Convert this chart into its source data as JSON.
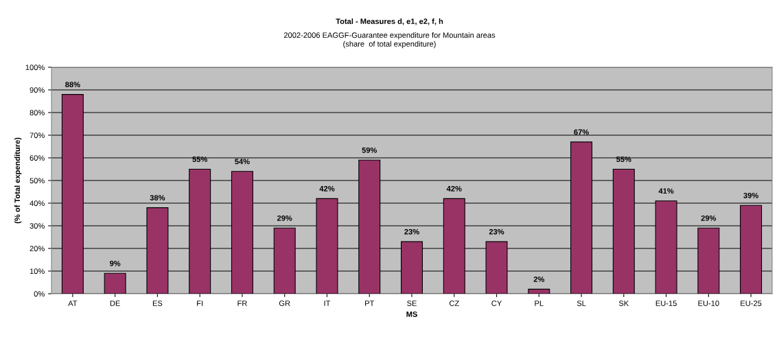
{
  "chart_data": {
    "type": "bar",
    "title": "Total - Measures d, e1, e2, f, h",
    "subtitle": "2002-2006 EAGGF-Guarantee expenditure for Mountain areas\n(share  of total expenditure)",
    "xlabel": "MS",
    "ylabel": "(% of Total expenditure)",
    "categories": [
      "AT",
      "DE",
      "ES",
      "FI",
      "FR",
      "GR",
      "IT",
      "PT",
      "SE",
      "CZ",
      "CY",
      "PL",
      "SL",
      "SK",
      "EU-15",
      "EU-10",
      "EU-25"
    ],
    "values": [
      88,
      9,
      38,
      55,
      54,
      29,
      42,
      59,
      23,
      42,
      23,
      2,
      67,
      55,
      41,
      29,
      39
    ],
    "value_labels": [
      "88%",
      "9%",
      "38%",
      "55%",
      "54%",
      "29%",
      "42%",
      "59%",
      "23%",
      "42%",
      "23%",
      "2%",
      "67%",
      "55%",
      "41%",
      "29%",
      "39%"
    ],
    "color": "#993366",
    "ylim": [
      0,
      100
    ],
    "yticks": [
      {
        "value": 0,
        "label": "0%"
      },
      {
        "value": 10,
        "label": "10%"
      },
      {
        "value": 20,
        "label": "20%"
      },
      {
        "value": 30,
        "label": "30%"
      },
      {
        "value": 40,
        "label": "40%"
      },
      {
        "value": 50,
        "label": "50%"
      },
      {
        "value": 60,
        "label": "60%"
      },
      {
        "value": 70,
        "label": "70%"
      },
      {
        "value": 80,
        "label": "80%"
      },
      {
        "value": 90,
        "label": "90%"
      },
      {
        "value": 100,
        "label": "100%"
      }
    ],
    "grid": "y",
    "legend": false
  }
}
